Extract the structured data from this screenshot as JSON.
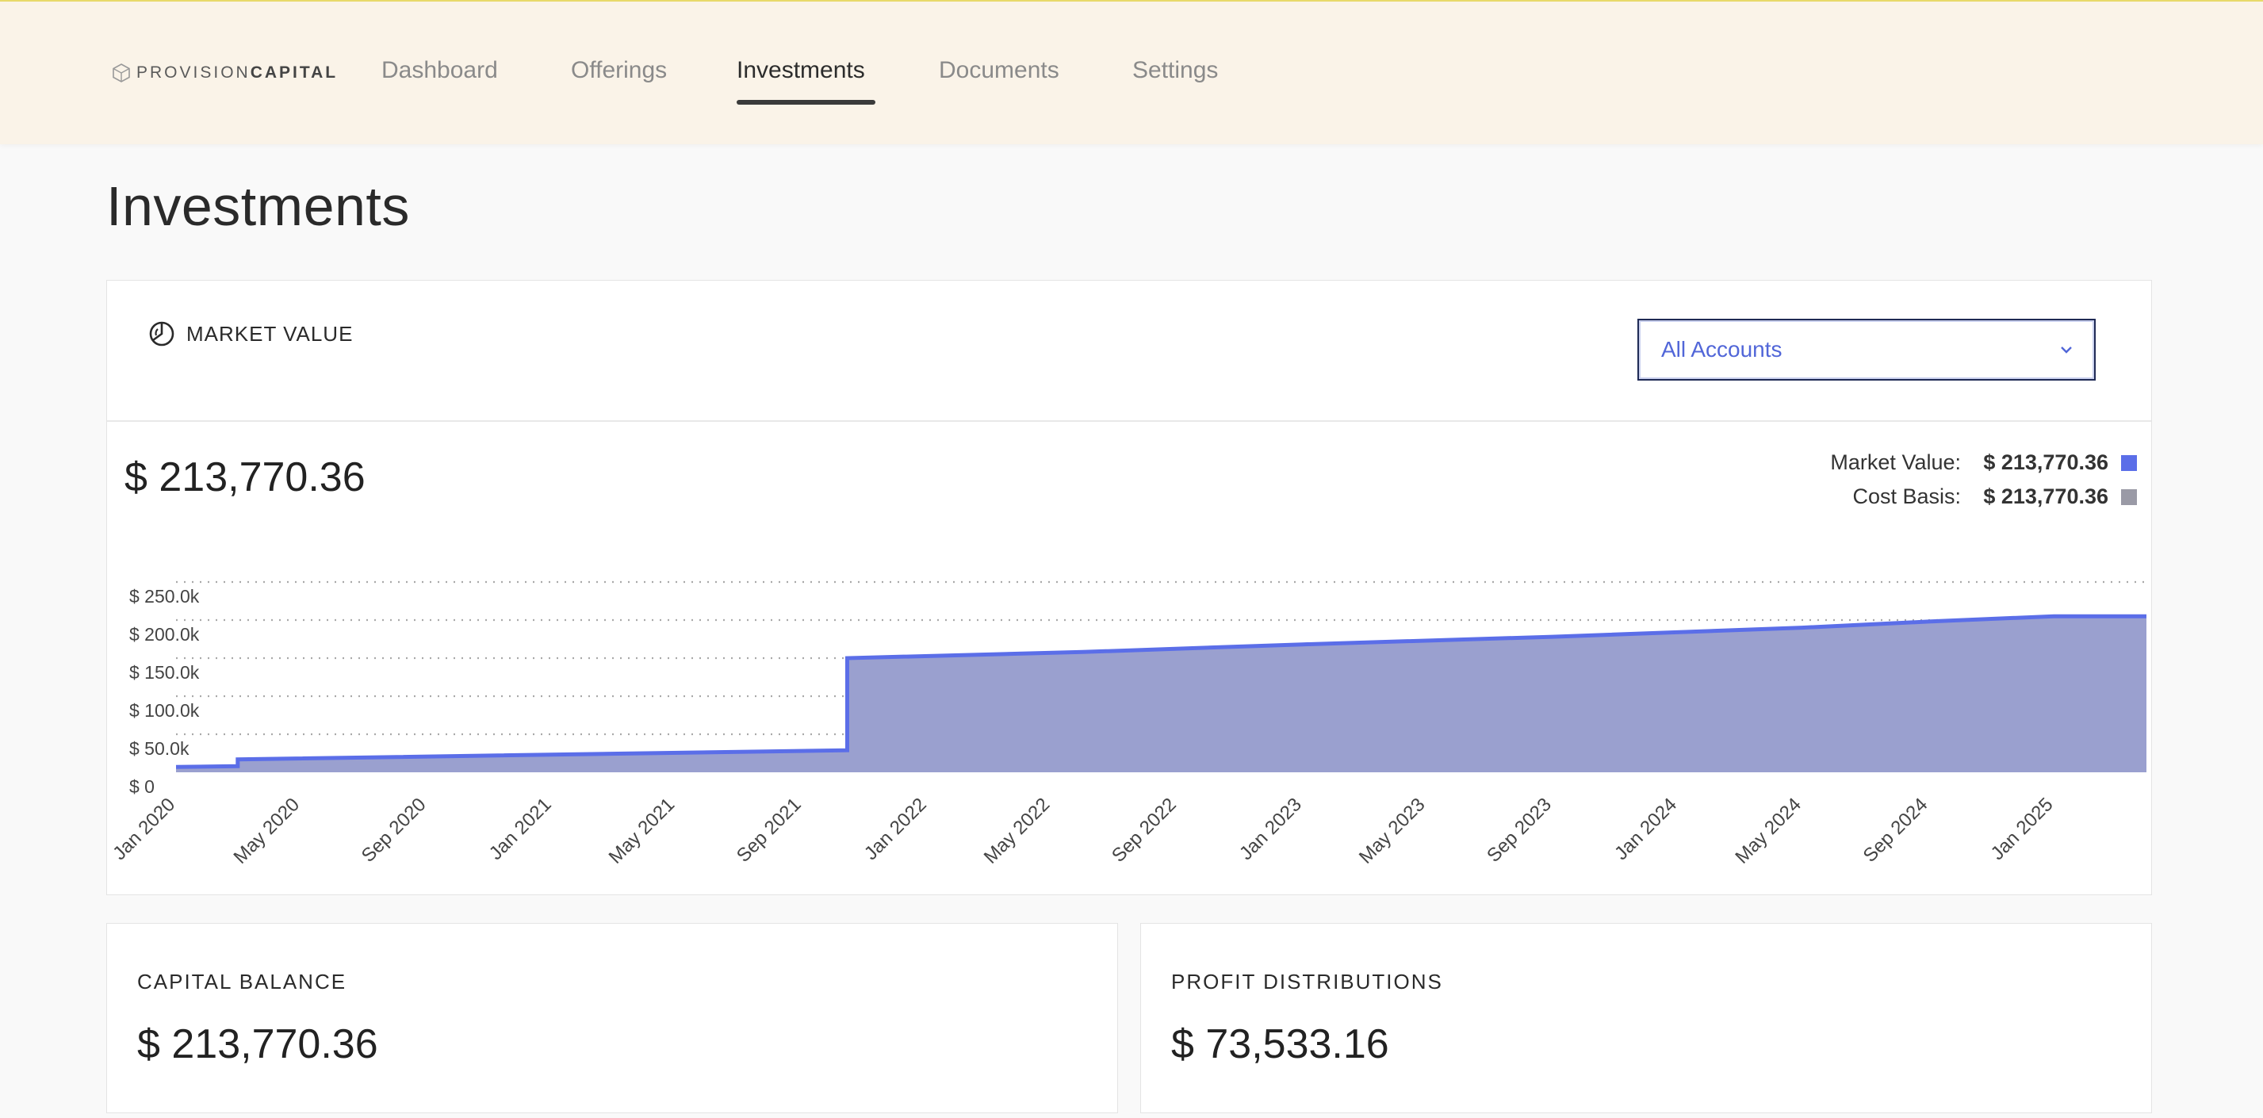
{
  "brand": {
    "name_light": "PROVISION",
    "name_bold": "CAPITAL"
  },
  "nav": {
    "tabs": [
      {
        "label": "Dashboard"
      },
      {
        "label": "Offerings"
      },
      {
        "label": "Investments",
        "active": true
      },
      {
        "label": "Documents"
      },
      {
        "label": "Settings"
      }
    ]
  },
  "page": {
    "title": "Investments"
  },
  "market_value": {
    "label": "MARKET VALUE",
    "icon": "pie-chart-icon",
    "account_select": {
      "value": "All Accounts"
    },
    "total": "$ 213,770.36",
    "legend": [
      {
        "label": "Market Value:",
        "value": "$ 213,770.36",
        "color": "#5b6ee8"
      },
      {
        "label": "Cost Basis:",
        "value": "$ 213,770.36",
        "color": "#9a9aa6"
      }
    ]
  },
  "capital_balance": {
    "label": "CAPITAL BALANCE",
    "value": "$ 213,770.36"
  },
  "profit_distributions": {
    "label": "PROFIT DISTRIBUTIONS",
    "value": "$ 73,533.16"
  },
  "colors": {
    "accent": "#5b6ee8",
    "area_fill": "#9aa0cf",
    "nav_bg": "#faf3e8"
  },
  "chart_data": {
    "type": "area",
    "ylim": [
      0,
      250000
    ],
    "y_ticks": [
      "$ 0",
      "$ 50.0k",
      "$ 100.0k",
      "$ 150.0k",
      "$ 200.0k",
      "$ 250.0k"
    ],
    "x_ticks": [
      "Jan 2020",
      "May 2020",
      "Sep 2020",
      "Jan 2021",
      "May 2021",
      "Sep 2021",
      "Jan 2022",
      "May 2022",
      "Sep 2022",
      "Jan 2023",
      "May 2023",
      "Sep 2023",
      "Jan 2024",
      "May 2024",
      "Sep 2024",
      "Jan 2025"
    ],
    "grid": true,
    "legend_position": "top-right",
    "series": [
      {
        "name": "Market Value",
        "points": [
          [
            "2020-01-01",
            7000
          ],
          [
            "2020-03-01",
            8000
          ],
          [
            "2020-03-01",
            17000
          ],
          [
            "2021-10-15",
            29000
          ],
          [
            "2021-10-15",
            150000
          ],
          [
            "2022-06-01",
            158000
          ],
          [
            "2023-01-01",
            168000
          ],
          [
            "2023-09-01",
            178000
          ],
          [
            "2024-05-01",
            190000
          ],
          [
            "2024-09-01",
            198000
          ],
          [
            "2025-01-01",
            205000
          ],
          [
            "2025-04-01",
            205000
          ]
        ]
      }
    ]
  }
}
